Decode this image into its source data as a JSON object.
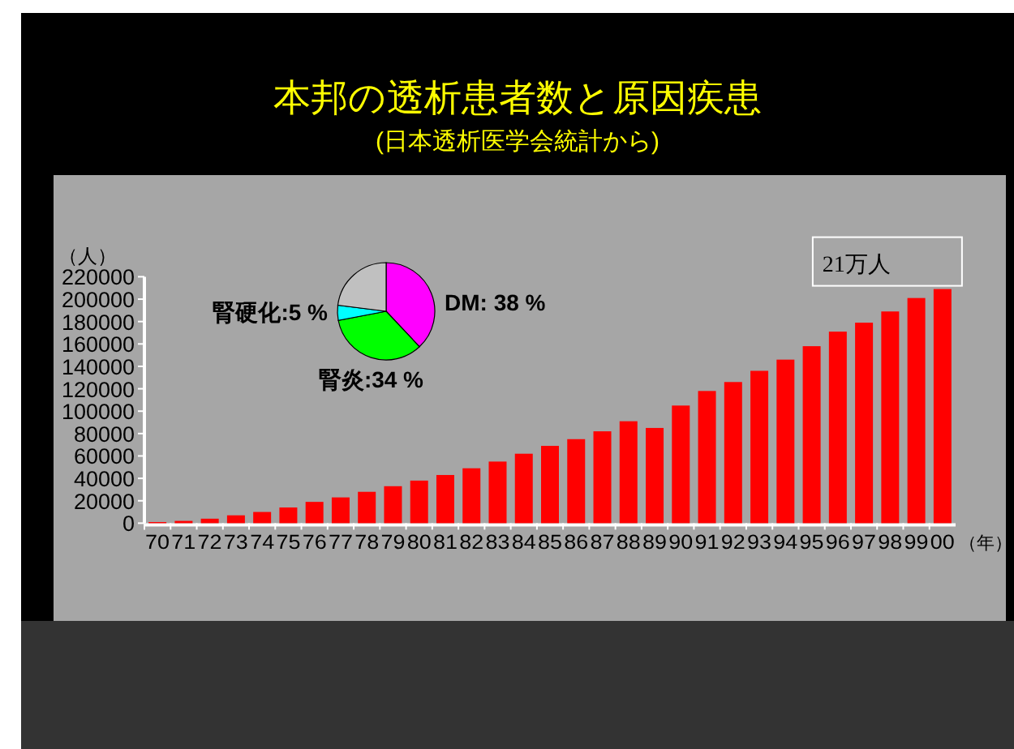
{
  "chart_data": [
    {
      "type": "bar",
      "title": "本邦の透析患者数と原因疾患",
      "subtitle": "(日本透析医学会統計から)",
      "ylabel": "（人）",
      "xlabel": "（年）",
      "categories": [
        "70",
        "71",
        "72",
        "73",
        "74",
        "75",
        "76",
        "77",
        "78",
        "79",
        "80",
        "81",
        "82",
        "83",
        "84",
        "85",
        "86",
        "87",
        "88",
        "89",
        "90",
        "91",
        "92",
        "93",
        "94",
        "95",
        "96",
        "97",
        "98",
        "99",
        "00"
      ],
      "values": [
        1000,
        2000,
        4000,
        7000,
        10000,
        14000,
        19000,
        23000,
        28000,
        33000,
        38000,
        43000,
        49000,
        55000,
        62000,
        69000,
        75000,
        82000,
        91000,
        85000,
        105000,
        118000,
        126000,
        136000,
        146000,
        158000,
        171000,
        179000,
        189000,
        201000,
        209000
      ],
      "color": "#ff0000",
      "ylim": [
        0,
        220000
      ],
      "yticks": [
        0,
        20000,
        40000,
        60000,
        80000,
        100000,
        120000,
        140000,
        160000,
        180000,
        200000,
        220000
      ],
      "annotations": [
        {
          "text": "21万人",
          "x": "00",
          "y": 209000
        }
      ]
    },
    {
      "type": "pie",
      "categories": [
        "DM: 38 %",
        "腎炎:34 %",
        "腎硬化:5 %",
        null
      ],
      "values": [
        38,
        34,
        5,
        23
      ],
      "colors": [
        "#ff00ff",
        "#00ff00",
        "#00ffff",
        "#c0c0c0"
      ]
    }
  ]
}
